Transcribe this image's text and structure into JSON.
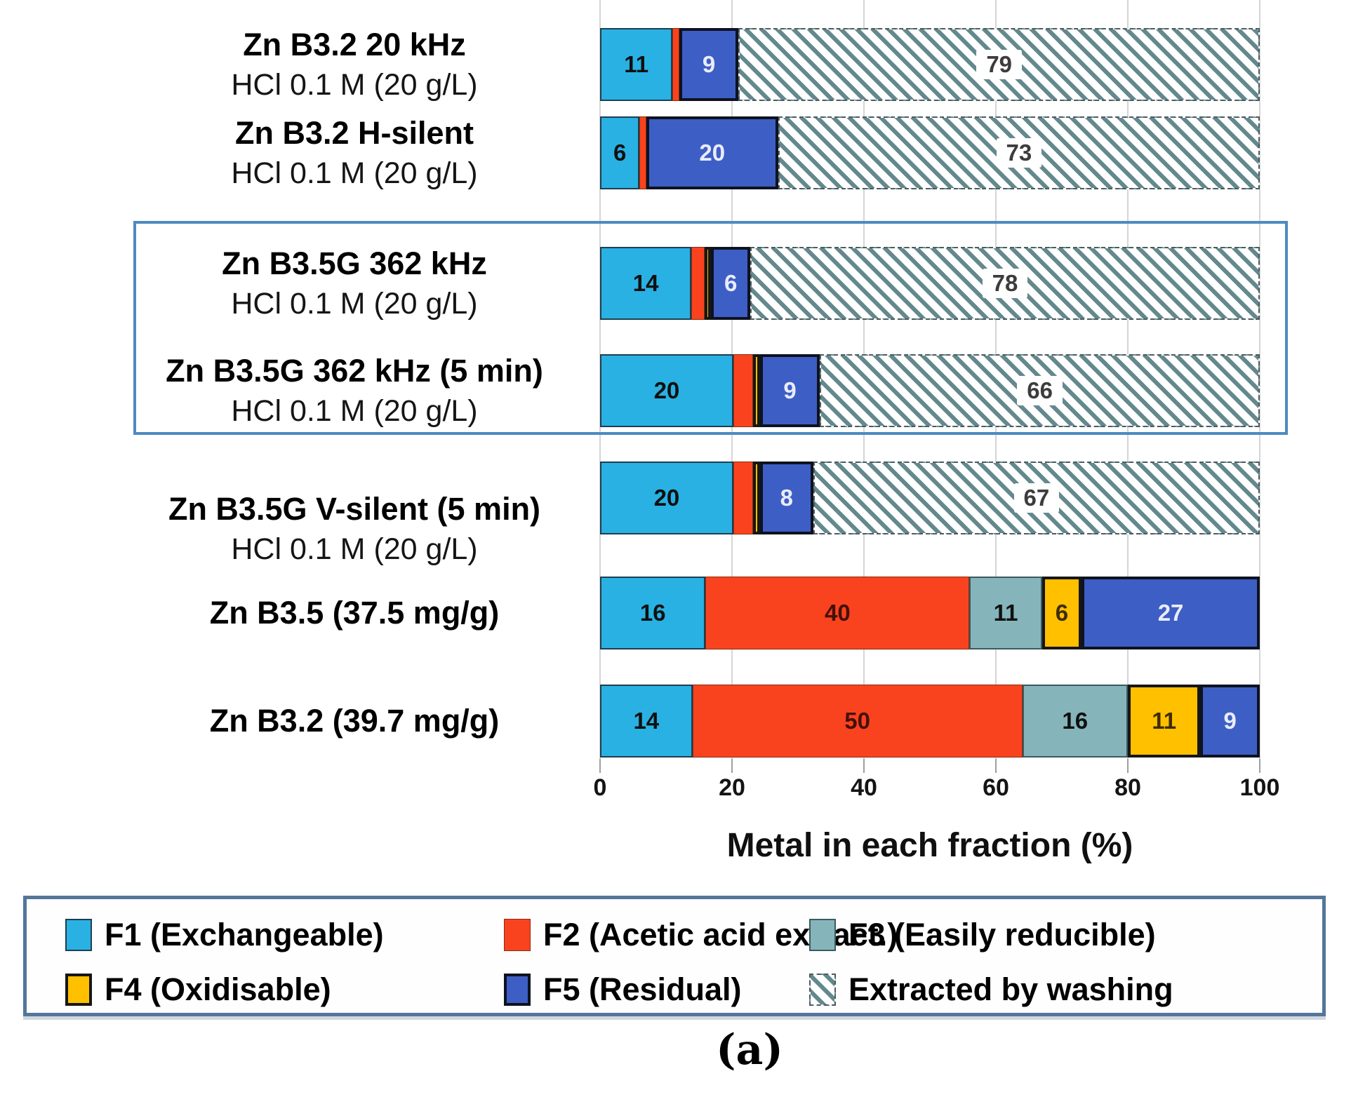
{
  "caption": "(a)",
  "chart_data": {
    "type": "bar",
    "orientation": "horizontal",
    "stacked": true,
    "xlabel": "Metal in each fraction (%)",
    "xlim": [
      0,
      100
    ],
    "xticks": [
      0,
      20,
      40,
      60,
      80,
      100
    ],
    "grid": true,
    "legend_position": "bottom",
    "series_order": [
      "F1",
      "F2",
      "F3",
      "F4",
      "F5",
      "wash"
    ],
    "colors": {
      "F1": "#29b1e3",
      "F2": "#f9431e",
      "F3": "#85b5bb",
      "F4": "#ffc000",
      "F5": "#3d5ec4",
      "wash_bg": "#ffffff",
      "wash_stripe": "#64898d",
      "highlight_border": "#4e8ac2"
    },
    "legend": [
      {
        "key": "F1",
        "label": "F1 (Exchangeable)"
      },
      {
        "key": "F2",
        "label": "F2 (Acetic acid extract.)"
      },
      {
        "key": "F3",
        "label": "F3 (Easily reducible)"
      },
      {
        "key": "F4",
        "label": "F4 (Oxidisable)"
      },
      {
        "key": "F5",
        "label": "F5 (Residual)"
      },
      {
        "key": "wash",
        "label": "Extracted by washing"
      }
    ],
    "rows": [
      {
        "label": "Zn B3.2 20 kHz",
        "sublabel": "HCl 0.1 M (20 g/L)",
        "highlighted": false,
        "segments": [
          {
            "key": "F1",
            "value": 11,
            "labeled": true
          },
          {
            "key": "F2",
            "value": 1,
            "labeled": false
          },
          {
            "key": "F5",
            "value": 9,
            "labeled": true
          },
          {
            "key": "wash",
            "value": 79,
            "labeled": true
          }
        ]
      },
      {
        "label": "Zn B3.2 H-silent",
        "sublabel": "HCl 0.1 M (20 g/L)",
        "highlighted": false,
        "segments": [
          {
            "key": "F1",
            "value": 6,
            "labeled": true
          },
          {
            "key": "F2",
            "value": 1,
            "labeled": false
          },
          {
            "key": "F5",
            "value": 20,
            "labeled": true
          },
          {
            "key": "wash",
            "value": 73,
            "labeled": true
          }
        ]
      },
      {
        "label": "Zn B3.5G 362 kHz",
        "sublabel": "HCl 0.1 M (20 g/L)",
        "highlighted": true,
        "segments": [
          {
            "key": "F1",
            "value": 14,
            "labeled": true
          },
          {
            "key": "F2",
            "value": 2,
            "labeled": false
          },
          {
            "key": "F4",
            "value": 1,
            "labeled": false
          },
          {
            "key": "F5",
            "value": 6,
            "labeled": true
          },
          {
            "key": "wash",
            "value": 78,
            "labeled": true
          }
        ]
      },
      {
        "label": "Zn B3.5G 362 kHz (5 min)",
        "sublabel": "HCl 0.1 M (20 g/L)",
        "highlighted": true,
        "segments": [
          {
            "key": "F1",
            "value": 20,
            "labeled": true
          },
          {
            "key": "F2",
            "value": 3,
            "labeled": false
          },
          {
            "key": "F4",
            "value": 1,
            "labeled": false
          },
          {
            "key": "F5",
            "value": 9,
            "labeled": true
          },
          {
            "key": "wash",
            "value": 66,
            "labeled": true
          }
        ]
      },
      {
        "label": "Zn B3.5G V-silent (5 min)",
        "sublabel": "HCl 0.1 M (20 g/L)",
        "highlighted": false,
        "segments": [
          {
            "key": "F1",
            "value": 20,
            "labeled": true
          },
          {
            "key": "F2",
            "value": 3,
            "labeled": false
          },
          {
            "key": "F4",
            "value": 1,
            "labeled": false
          },
          {
            "key": "F5",
            "value": 8,
            "labeled": true
          },
          {
            "key": "wash",
            "value": 67,
            "labeled": true
          }
        ]
      },
      {
        "label": "Zn B3.5 (37.5 mg/g)",
        "sublabel": "",
        "highlighted": false,
        "segments": [
          {
            "key": "F1",
            "value": 16,
            "labeled": true
          },
          {
            "key": "F2",
            "value": 40,
            "labeled": true
          },
          {
            "key": "F3",
            "value": 11,
            "labeled": true
          },
          {
            "key": "F4",
            "value": 6,
            "labeled": true
          },
          {
            "key": "F5",
            "value": 27,
            "labeled": true
          }
        ]
      },
      {
        "label": "Zn B3.2 (39.7 mg/g)",
        "sublabel": "",
        "highlighted": false,
        "segments": [
          {
            "key": "F1",
            "value": 14,
            "labeled": true
          },
          {
            "key": "F2",
            "value": 50,
            "labeled": true
          },
          {
            "key": "F3",
            "value": 16,
            "labeled": true
          },
          {
            "key": "F4",
            "value": 11,
            "labeled": true
          },
          {
            "key": "F5",
            "value": 9,
            "labeled": true
          }
        ]
      }
    ]
  }
}
